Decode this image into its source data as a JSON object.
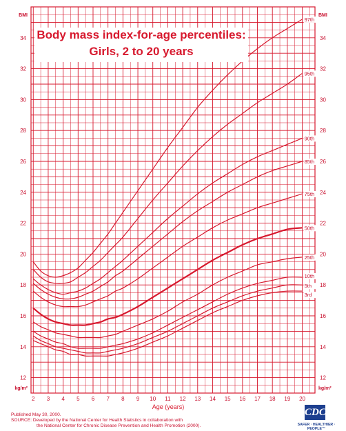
{
  "chart_data": {
    "type": "line",
    "title": "Body mass index-for-age percentiles:",
    "subtitle": "Girls, 2 to 20 years",
    "xlabel": "Age (years)",
    "ylabel": "BMI",
    "ylabel_bottom": "kg/m²",
    "xlim": [
      2,
      20
    ],
    "ylim": [
      11,
      36
    ],
    "x_ticks": [
      2,
      3,
      4,
      5,
      6,
      7,
      8,
      9,
      10,
      11,
      12,
      13,
      14,
      15,
      16,
      17,
      18,
      19,
      20
    ],
    "y_ticks": [
      12,
      14,
      16,
      18,
      20,
      22,
      24,
      26,
      28,
      30,
      32,
      34
    ],
    "grid": true,
    "x": [
      2,
      2.5,
      3,
      3.5,
      4,
      4.5,
      5,
      5.5,
      6,
      6.5,
      7,
      7.5,
      8,
      9,
      10,
      11,
      12,
      13,
      14,
      15,
      16,
      17,
      18,
      19,
      20
    ],
    "series": [
      {
        "name": "97th",
        "values": [
          19.5,
          18.9,
          18.6,
          18.5,
          18.6,
          18.8,
          19.1,
          19.6,
          20.1,
          20.7,
          21.3,
          22.0,
          22.7,
          24.1,
          25.5,
          26.9,
          28.2,
          29.5,
          30.6,
          31.6,
          32.5,
          33.3,
          34.0,
          34.6,
          35.2
        ]
      },
      {
        "name": "95th",
        "values": [
          19.0,
          18.5,
          18.2,
          18.1,
          18.1,
          18.2,
          18.5,
          18.8,
          19.2,
          19.6,
          20.1,
          20.6,
          21.1,
          22.3,
          23.5,
          24.6,
          25.7,
          26.7,
          27.6,
          28.4,
          29.1,
          29.8,
          30.4,
          31.0,
          31.7
        ]
      },
      {
        "name": "90th",
        "values": [
          18.4,
          18.0,
          17.7,
          17.5,
          17.4,
          17.5,
          17.6,
          17.8,
          18.1,
          18.4,
          18.8,
          19.2,
          19.6,
          20.5,
          21.4,
          22.3,
          23.1,
          23.9,
          24.6,
          25.2,
          25.8,
          26.3,
          26.7,
          27.1,
          27.5
        ]
      },
      {
        "name": "85th",
        "values": [
          18.1,
          17.7,
          17.4,
          17.2,
          17.1,
          17.1,
          17.2,
          17.4,
          17.6,
          17.9,
          18.2,
          18.6,
          18.9,
          19.7,
          20.5,
          21.3,
          22.1,
          22.8,
          23.4,
          24.0,
          24.5,
          25.0,
          25.4,
          25.7,
          26.0
        ]
      },
      {
        "name": "75th",
        "values": [
          17.6,
          17.2,
          16.9,
          16.7,
          16.6,
          16.6,
          16.6,
          16.7,
          16.9,
          17.1,
          17.3,
          17.6,
          17.8,
          18.4,
          19.1,
          19.8,
          20.5,
          21.1,
          21.7,
          22.2,
          22.6,
          23.0,
          23.3,
          23.6,
          23.9
        ]
      },
      {
        "name": "50th",
        "values": [
          16.5,
          16.1,
          15.8,
          15.6,
          15.5,
          15.4,
          15.4,
          15.4,
          15.5,
          15.6,
          15.8,
          15.9,
          16.1,
          16.6,
          17.2,
          17.8,
          18.4,
          19.0,
          19.6,
          20.1,
          20.6,
          21.0,
          21.3,
          21.6,
          21.7
        ]
      },
      {
        "name": "25th",
        "values": [
          15.6,
          15.3,
          15.1,
          14.9,
          14.8,
          14.7,
          14.6,
          14.6,
          14.6,
          14.6,
          14.7,
          14.8,
          15.0,
          15.4,
          15.8,
          16.3,
          16.9,
          17.4,
          18.0,
          18.5,
          18.9,
          19.3,
          19.5,
          19.7,
          19.8
        ]
      },
      {
        "name": "10th",
        "values": [
          15.0,
          14.7,
          14.5,
          14.3,
          14.2,
          14.0,
          13.9,
          13.9,
          13.9,
          13.9,
          14.0,
          14.1,
          14.2,
          14.5,
          14.9,
          15.4,
          15.9,
          16.4,
          16.9,
          17.4,
          17.8,
          18.1,
          18.3,
          18.5,
          18.5
        ]
      },
      {
        "name": "5th",
        "values": [
          14.7,
          14.4,
          14.2,
          14.0,
          13.9,
          13.8,
          13.7,
          13.6,
          13.6,
          13.6,
          13.7,
          13.8,
          13.9,
          14.2,
          14.6,
          15.0,
          15.5,
          16.0,
          16.5,
          16.9,
          17.3,
          17.6,
          17.8,
          18.0,
          18.0
        ]
      },
      {
        "name": "3rd",
        "values": [
          14.4,
          14.2,
          14.0,
          13.8,
          13.7,
          13.5,
          13.5,
          13.4,
          13.4,
          13.4,
          13.4,
          13.5,
          13.6,
          13.9,
          14.3,
          14.7,
          15.2,
          15.7,
          16.2,
          16.6,
          17.0,
          17.3,
          17.5,
          17.6,
          17.6
        ]
      }
    ]
  },
  "footer": {
    "published": "Published May 30, 2000.",
    "source": "SOURCE: Developed by the National Center for Health Statistics in collaboration with",
    "source2": "the National Center for Chronic Disease Prevention and Health Promotion (2000)."
  },
  "logo": {
    "text": "CDC",
    "tagline": "SAFER · HEALTHIER · PEOPLE™"
  },
  "colors": {
    "line": "#d7192e",
    "grid": "#d7192e",
    "text": "#c8102e",
    "logo": "#1d3f8f"
  }
}
